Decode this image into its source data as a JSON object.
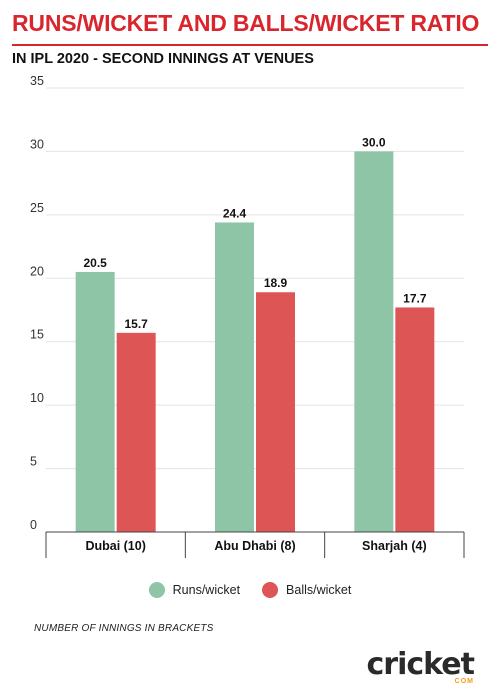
{
  "header": {
    "title": "RUNS/WICKET AND BALLS/WICKET RATIO",
    "subtitle": "IN IPL 2020 - SECOND INNINGS AT VENUES"
  },
  "footer": {
    "note": "NUMBER OF INNINGS IN BRACKETS",
    "logo_text": "cricket",
    "logo_sub": "COM"
  },
  "colors": {
    "title": "#d9262c",
    "runs": "#8fc5a7",
    "balls": "#dd5555",
    "grid": "#e3e3e3",
    "axis": "#444444"
  },
  "chart_data": {
    "type": "bar",
    "categories": [
      "Dubai (10)",
      "Abu Dhabi (8)",
      "Sharjah (4)"
    ],
    "series": [
      {
        "name": "Runs/wicket",
        "values": [
          20.5,
          24.4,
          30.0
        ],
        "labels": [
          "20.5",
          "24.4",
          "30.0"
        ],
        "color": "#8fc5a7"
      },
      {
        "name": "Balls/wicket",
        "values": [
          15.7,
          18.9,
          17.7
        ],
        "labels": [
          "15.7",
          "18.9",
          "17.7"
        ],
        "color": "#dd5555"
      }
    ],
    "yticks": [
      0,
      5,
      10,
      15,
      20,
      25,
      30,
      35
    ],
    "ylim": [
      0,
      35
    ],
    "grid": true,
    "legend": "bottom"
  }
}
